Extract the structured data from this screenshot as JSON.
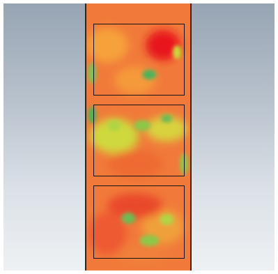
{
  "colors": {
    "background_top": "#97a4b3",
    "background_bottom": "#eef1f4",
    "field_base": "#f17a3a",
    "hot": "#e8161e",
    "warm": "#ee5a30",
    "mid": "#f6b23a",
    "cool": "#c8dc3a",
    "cold": "#4cb45a",
    "frame": "#141414"
  },
  "frames_count": 3
}
